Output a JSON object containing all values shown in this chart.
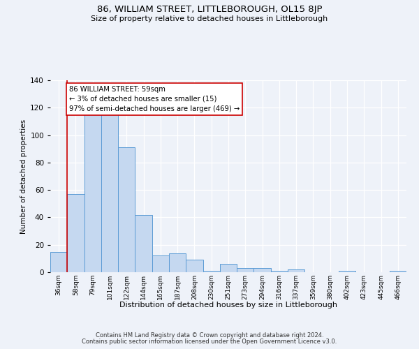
{
  "title": "86, WILLIAM STREET, LITTLEBOROUGH, OL15 8JP",
  "subtitle": "Size of property relative to detached houses in Littleborough",
  "xlabel": "Distribution of detached houses by size in Littleborough",
  "ylabel": "Number of detached properties",
  "bar_color": "#c5d8f0",
  "bar_edge_color": "#5b9bd5",
  "background_color": "#eef2f9",
  "grid_color": "#ffffff",
  "categories": [
    "36sqm",
    "58sqm",
    "79sqm",
    "101sqm",
    "122sqm",
    "144sqm",
    "165sqm",
    "187sqm",
    "208sqm",
    "230sqm",
    "251sqm",
    "273sqm",
    "294sqm",
    "316sqm",
    "337sqm",
    "359sqm",
    "380sqm",
    "402sqm",
    "423sqm",
    "445sqm",
    "466sqm"
  ],
  "values": [
    15,
    57,
    115,
    118,
    91,
    42,
    12,
    14,
    9,
    1,
    6,
    3,
    3,
    1,
    2,
    0,
    0,
    1,
    0,
    0,
    1
  ],
  "ylim": [
    0,
    140
  ],
  "yticks": [
    0,
    20,
    40,
    60,
    80,
    100,
    120,
    140
  ],
  "property_line_x": 0.5,
  "property_line_color": "#cc0000",
  "annotation_text": "86 WILLIAM STREET: 59sqm\n← 3% of detached houses are smaller (15)\n97% of semi-detached houses are larger (469) →",
  "annotation_box_color": "#ffffff",
  "annotation_box_edge": "#cc0000",
  "footer1": "Contains HM Land Registry data © Crown copyright and database right 2024.",
  "footer2": "Contains public sector information licensed under the Open Government Licence v3.0."
}
